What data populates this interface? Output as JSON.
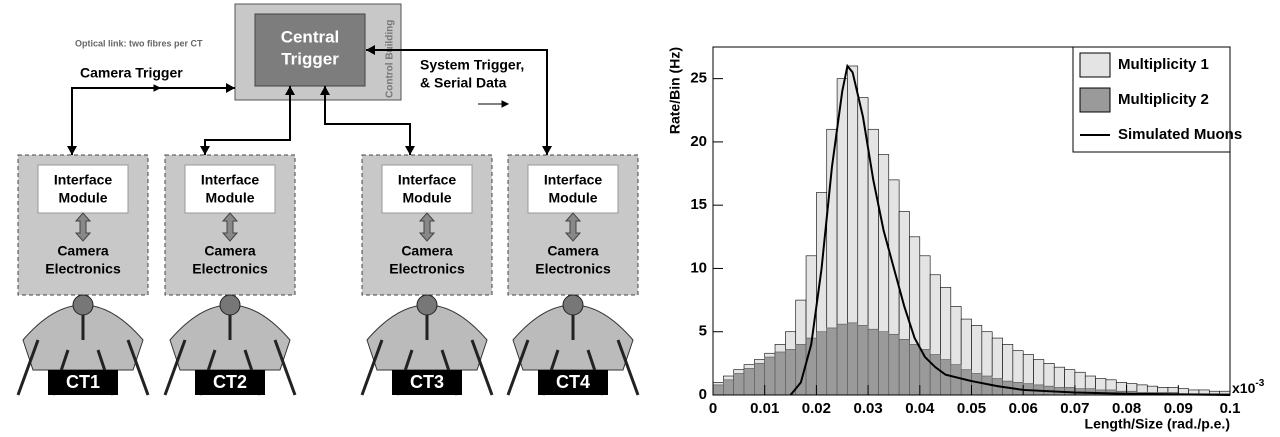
{
  "diagram": {
    "optical_link": "Optical link: two fibres per CT",
    "camera_trigger": "Camera Trigger",
    "system_trigger": [
      "System Trigger,",
      "& Serial Data"
    ],
    "central_trigger": [
      "Central",
      "Trigger"
    ],
    "control_building": "Control Building",
    "modules": [
      {
        "interface": [
          "Interface",
          "Module"
        ],
        "camera": [
          "Camera",
          "Electronics"
        ],
        "label": "CT1"
      },
      {
        "interface": [
          "Interface",
          "Module"
        ],
        "camera": [
          "Camera",
          "Electronics"
        ],
        "label": "CT2"
      },
      {
        "interface": [
          "Interface",
          "Module"
        ],
        "camera": [
          "Camera",
          "Electronics"
        ],
        "label": "CT3"
      },
      {
        "interface": [
          "Interface",
          "Module"
        ],
        "camera": [
          "Camera",
          "Electronics"
        ],
        "label": "CT4"
      }
    ]
  },
  "chart_data": {
    "type": "histogram",
    "x_label": "Length/Size (rad./p.e.)",
    "y_label": "Rate/Bin (Hz)",
    "x_multiplier": {
      "base": "x10",
      "exponent": "-3"
    },
    "bins": [
      0,
      0.002,
      0.004,
      0.006,
      0.008,
      0.01,
      0.012,
      0.014,
      0.016,
      0.018,
      0.02,
      0.022,
      0.024,
      0.026,
      0.028,
      0.03,
      0.032,
      0.034,
      0.036,
      0.038,
      0.04,
      0.042,
      0.044,
      0.046,
      0.048,
      0.05,
      0.052,
      0.054,
      0.056,
      0.058,
      0.06,
      0.062,
      0.064,
      0.066,
      0.068,
      0.07,
      0.072,
      0.074,
      0.076,
      0.078,
      0.08,
      0.082,
      0.084,
      0.086,
      0.088,
      0.09,
      0.092,
      0.094,
      0.096,
      0.098,
      0.1
    ],
    "series": [
      {
        "name": "Multiplicity 1",
        "color": "#e4e4e4",
        "values": [
          1.0,
          1.5,
          2.0,
          2.4,
          2.8,
          3.3,
          4.0,
          5.0,
          7.5,
          11,
          16,
          21,
          25,
          26,
          23.5,
          21,
          19,
          17,
          14.5,
          12.5,
          11,
          9.5,
          8.5,
          7,
          6,
          5.5,
          5,
          4.5,
          4,
          3.5,
          3.2,
          2.8,
          2.5,
          2.2,
          2,
          1.8,
          1.5,
          1.3,
          1.2,
          1.0,
          0.9,
          0.8,
          0.7,
          0.6,
          0.6,
          0.5,
          0.4,
          0.4,
          0.3,
          0.3
        ]
      },
      {
        "name": "Multiplicity 2",
        "color": "#9a9a9a",
        "values": [
          0.8,
          1.2,
          1.7,
          2.1,
          2.5,
          3.0,
          3.4,
          3.6,
          4.0,
          4.5,
          5.0,
          5.3,
          5.6,
          5.7,
          5.5,
          5.2,
          5.0,
          4.8,
          4.4,
          4.0,
          3.6,
          3.2,
          2.8,
          2.4,
          2.0,
          1.7,
          1.5,
          1.3,
          1.1,
          1.0,
          0.9,
          0.8,
          0.7,
          0.6,
          0.6,
          0.5,
          0.5,
          0.4,
          0.4,
          0.3,
          0.3,
          0.2,
          0.2,
          0.2,
          0.2,
          0.1,
          0.1,
          0.1,
          0.1,
          0.1
        ]
      },
      {
        "name": "Simulated Muons",
        "color": "#000000",
        "line": true,
        "x": [
          0.015,
          0.017,
          0.019,
          0.021,
          0.023,
          0.025,
          0.026,
          0.027,
          0.029,
          0.031,
          0.033,
          0.035,
          0.037,
          0.039,
          0.041,
          0.043,
          0.045,
          0.05,
          0.055,
          0.06,
          0.07,
          0.08,
          0.1
        ],
        "values": [
          0,
          1,
          4,
          10,
          18,
          24,
          26,
          25.5,
          22,
          17,
          13,
          10,
          7,
          4.5,
          3,
          2.2,
          1.6,
          1.1,
          0.7,
          0.4,
          0.2,
          0.1,
          0
        ]
      }
    ],
    "xlim": [
      0,
      0.1
    ],
    "ylim": [
      0,
      27.5
    ],
    "xticks": [
      0,
      0.01,
      0.02,
      0.03,
      0.04,
      0.05,
      0.06,
      0.07,
      0.08,
      0.09,
      0.1
    ],
    "yticks": [
      0,
      5,
      10,
      15,
      20,
      25
    ]
  }
}
